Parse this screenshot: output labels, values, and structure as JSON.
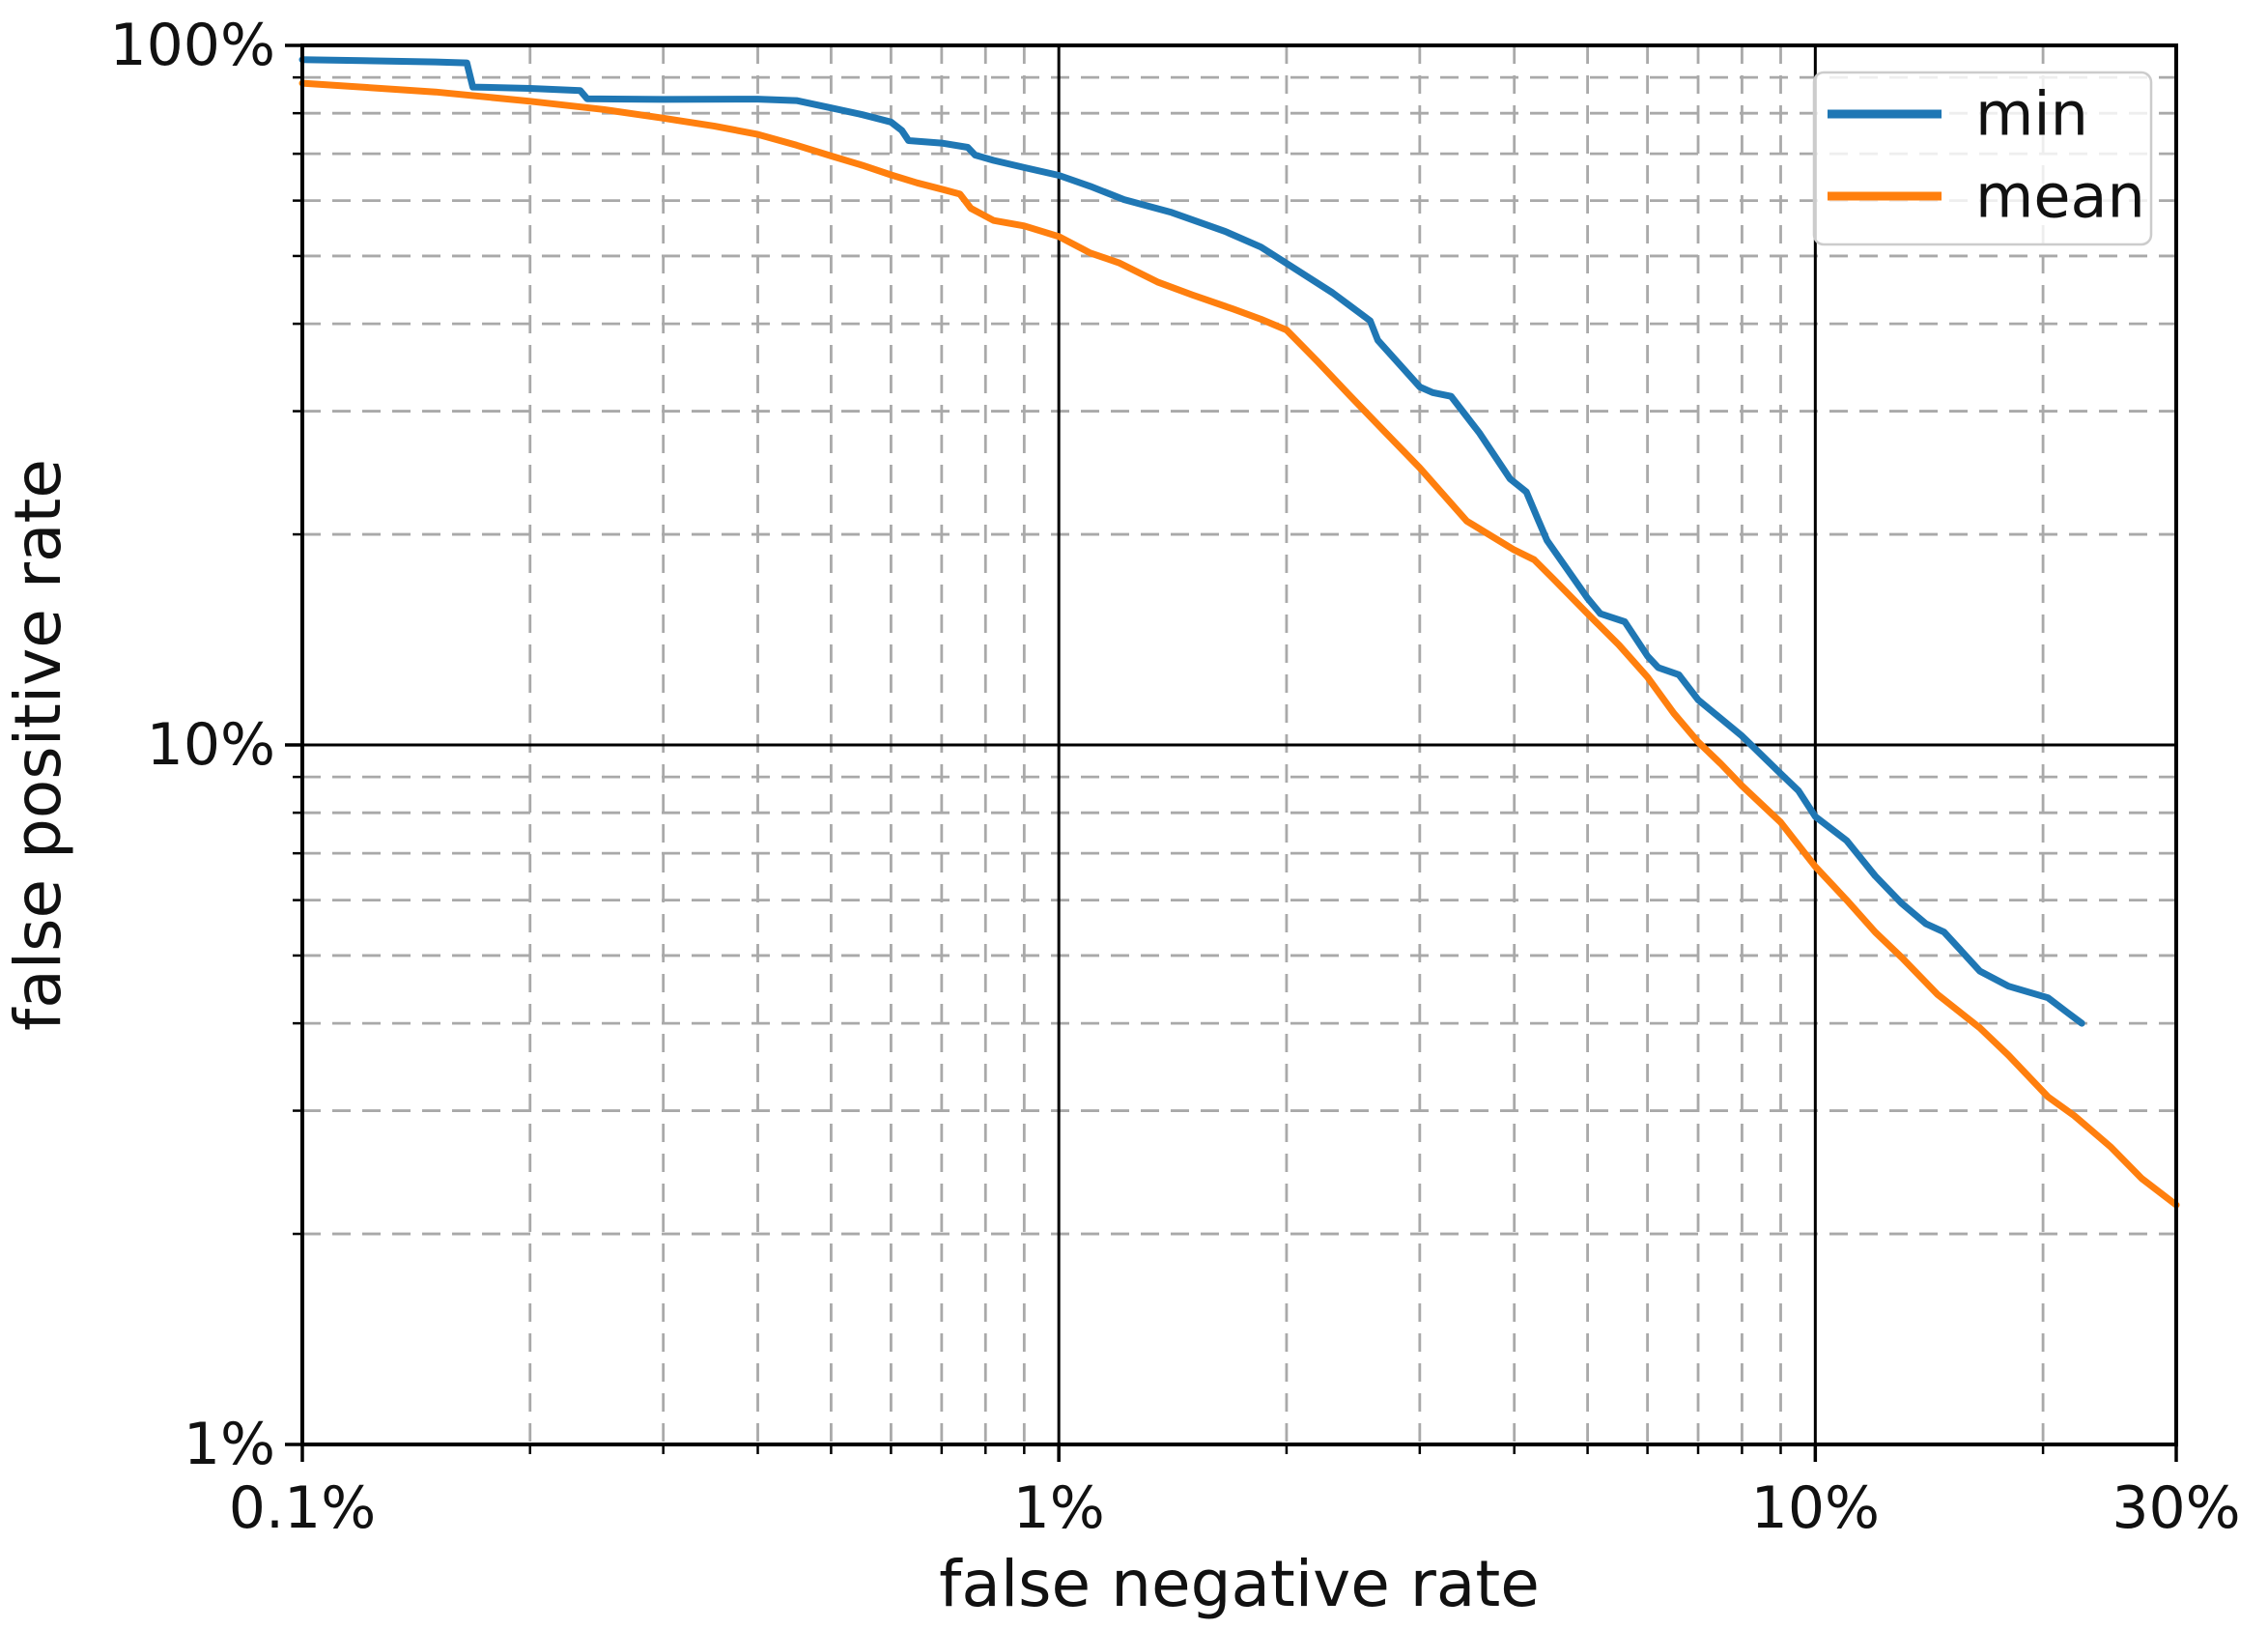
{
  "chart_data": {
    "type": "line",
    "title": "",
    "xlabel": "false negative rate",
    "ylabel": "false positive rate",
    "x_scale": "log",
    "y_scale": "log",
    "xlim_pct": [
      0.1,
      30
    ],
    "ylim_pct": [
      1,
      100
    ],
    "grid": {
      "major_style": "solid",
      "minor_style": "dashed",
      "minor_color": "#a9a9a9",
      "major_color": "#000000"
    },
    "x_major_ticks": [
      {
        "value": 0.1,
        "label": "0.1%"
      },
      {
        "value": 1,
        "label": "1%"
      },
      {
        "value": 10,
        "label": "10%"
      },
      {
        "value": 30,
        "label": "30%"
      }
    ],
    "y_major_ticks": [
      {
        "value": 100,
        "label": "100%"
      },
      {
        "value": 10,
        "label": "10%"
      },
      {
        "value": 1,
        "label": "1%"
      }
    ],
    "x_minor_ticks": [
      0.2,
      0.3,
      0.4,
      0.5,
      0.6,
      0.7,
      0.8,
      0.9,
      2,
      3,
      4,
      5,
      6,
      7,
      8,
      9,
      20
    ],
    "y_minor_ticks": [
      2,
      3,
      4,
      5,
      6,
      7,
      8,
      9,
      20,
      30,
      40,
      50,
      60,
      70,
      80,
      90
    ],
    "legend": {
      "position": "upper right",
      "entries": [
        "min",
        "mean"
      ]
    },
    "series": [
      {
        "name": "min",
        "color": "#1f77b4",
        "points": [
          [
            0.1,
            95.4
          ],
          [
            0.12,
            95.1
          ],
          [
            0.15,
            94.7
          ],
          [
            0.165,
            94.4
          ],
          [
            0.168,
            87.2
          ],
          [
            0.2,
            86.8
          ],
          [
            0.233,
            86.2
          ],
          [
            0.238,
            83.9
          ],
          [
            0.3,
            83.7
          ],
          [
            0.4,
            83.8
          ],
          [
            0.45,
            83.4
          ],
          [
            0.5,
            81.4
          ],
          [
            0.55,
            79.6
          ],
          [
            0.6,
            77.7
          ],
          [
            0.62,
            75.6
          ],
          [
            0.633,
            73.1
          ],
          [
            0.7,
            72.5
          ],
          [
            0.758,
            71.5
          ],
          [
            0.775,
            69.7
          ],
          [
            0.82,
            68.5
          ],
          [
            0.9,
            66.9
          ],
          [
            1.0,
            65.2
          ],
          [
            1.1,
            62.9
          ],
          [
            1.22,
            60.2
          ],
          [
            1.41,
            57.7
          ],
          [
            1.66,
            54.2
          ],
          [
            1.85,
            51.5
          ],
          [
            2.0,
            48.8
          ],
          [
            2.3,
            44.3
          ],
          [
            2.58,
            40.4
          ],
          [
            2.64,
            37.9
          ],
          [
            3.0,
            32.5
          ],
          [
            3.12,
            31.9
          ],
          [
            3.3,
            31.5
          ],
          [
            3.6,
            27.9
          ],
          [
            3.95,
            24.0
          ],
          [
            4.15,
            23.0
          ],
          [
            4.3,
            21.0
          ],
          [
            4.42,
            19.6
          ],
          [
            5.0,
            16.2
          ],
          [
            5.2,
            15.4
          ],
          [
            5.6,
            15.0
          ],
          [
            6.0,
            13.4
          ],
          [
            6.2,
            12.9
          ],
          [
            6.6,
            12.6
          ],
          [
            7.0,
            11.6
          ],
          [
            8.0,
            10.3
          ],
          [
            9.0,
            9.1
          ],
          [
            9.5,
            8.6
          ],
          [
            10.0,
            7.9
          ],
          [
            11.0,
            7.3
          ],
          [
            12.0,
            6.5
          ],
          [
            13.0,
            5.94
          ],
          [
            14.0,
            5.55
          ],
          [
            14.8,
            5.4
          ],
          [
            16.5,
            4.75
          ],
          [
            18.0,
            4.52
          ],
          [
            20.3,
            4.35
          ],
          [
            21.5,
            4.15
          ],
          [
            22.5,
            4.0
          ]
        ]
      },
      {
        "name": "mean",
        "color": "#ff7f0e",
        "points": [
          [
            0.1,
            88.3
          ],
          [
            0.15,
            85.8
          ],
          [
            0.2,
            83.2
          ],
          [
            0.25,
            81.0
          ],
          [
            0.3,
            78.7
          ],
          [
            0.35,
            76.7
          ],
          [
            0.4,
            74.6
          ],
          [
            0.45,
            72.0
          ],
          [
            0.5,
            69.5
          ],
          [
            0.55,
            67.4
          ],
          [
            0.6,
            65.3
          ],
          [
            0.65,
            63.6
          ],
          [
            0.7,
            62.3
          ],
          [
            0.74,
            61.3
          ],
          [
            0.765,
            58.5
          ],
          [
            0.82,
            56.2
          ],
          [
            0.9,
            55.2
          ],
          [
            1.0,
            53.3
          ],
          [
            1.1,
            50.5
          ],
          [
            1.2,
            48.9
          ],
          [
            1.35,
            45.9
          ],
          [
            1.5,
            44.0
          ],
          [
            1.7,
            42.0
          ],
          [
            1.85,
            40.6
          ],
          [
            2.0,
            39.2
          ],
          [
            2.2,
            35.3
          ],
          [
            2.43,
            31.5
          ],
          [
            2.7,
            28.0
          ],
          [
            3.0,
            24.9
          ],
          [
            3.46,
            20.9
          ],
          [
            4.0,
            19.0
          ],
          [
            4.25,
            18.4
          ],
          [
            4.5,
            17.3
          ],
          [
            5.0,
            15.4
          ],
          [
            5.5,
            13.9
          ],
          [
            6.0,
            12.5
          ],
          [
            6.5,
            11.1
          ],
          [
            7.0,
            10.1
          ],
          [
            7.5,
            9.4
          ],
          [
            8.0,
            8.74
          ],
          [
            9.0,
            7.75
          ],
          [
            10.0,
            6.7
          ],
          [
            11.0,
            6.0
          ],
          [
            12.0,
            5.4
          ],
          [
            13.0,
            4.97
          ],
          [
            14.5,
            4.4
          ],
          [
            16.5,
            3.94
          ],
          [
            18.0,
            3.6
          ],
          [
            20.3,
            3.14
          ],
          [
            22.0,
            2.95
          ],
          [
            24.6,
            2.66
          ],
          [
            27.0,
            2.4
          ],
          [
            30.0,
            2.2
          ]
        ]
      }
    ]
  },
  "colors": {
    "background": "#ffffff",
    "spine": "#000000",
    "text": "#111111",
    "minor_grid": "#a9a9a9",
    "legend_border": "#cccccc",
    "legend_bg": "#ffffff",
    "series_min": "#1f77b4",
    "series_mean": "#ff7f0e"
  }
}
